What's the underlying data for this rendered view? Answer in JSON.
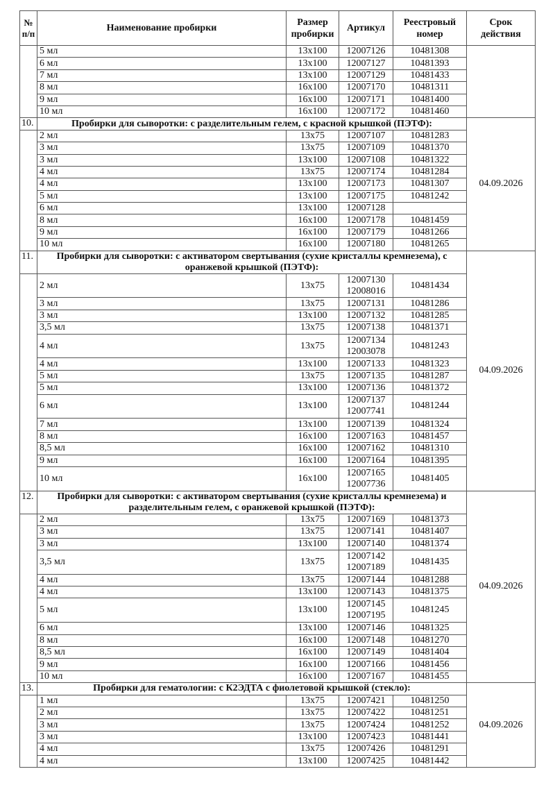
{
  "header": {
    "num": "№ п/п",
    "name": "Наименование пробирки",
    "size": "Размер пробирки",
    "article": "Артикул",
    "registry": "Реестровый номер",
    "expiry": "Срок действия"
  },
  "sections": [
    {
      "num": "",
      "title": "",
      "expiry": "",
      "rows": [
        {
          "name": "5 мл",
          "size": "13х100",
          "article": [
            "12007126"
          ],
          "registry": "10481308"
        },
        {
          "name": "6 мл",
          "size": "13х100",
          "article": [
            "12007127"
          ],
          "registry": "10481393"
        },
        {
          "name": "7 мл",
          "size": "13х100",
          "article": [
            "12007129"
          ],
          "registry": "10481433"
        },
        {
          "name": "8 мл",
          "size": "16х100",
          "article": [
            "12007170"
          ],
          "registry": "10481311"
        },
        {
          "name": "9 мл",
          "size": "16х100",
          "article": [
            "12007171"
          ],
          "registry": "10481400"
        },
        {
          "name": "10 мл",
          "size": "16х100",
          "article": [
            "12007172"
          ],
          "registry": "10481460"
        }
      ]
    },
    {
      "num": "10.",
      "title": "Пробирки для сыворотки: с разделительным гелем, с красной крышкой (ПЭТФ):",
      "expiry": "04.09.2026",
      "rows": [
        {
          "name": "2 мл",
          "size": "13х75",
          "article": [
            "12007107"
          ],
          "registry": "10481283"
        },
        {
          "name": "3 мл",
          "size": "13х75",
          "article": [
            "12007109"
          ],
          "registry": "10481370"
        },
        {
          "name": "3 мл",
          "size": "13х100",
          "article": [
            "12007108"
          ],
          "registry": "10481322"
        },
        {
          "name": "4 мл",
          "size": "13х75",
          "article": [
            "12007174"
          ],
          "registry": "10481284"
        },
        {
          "name": "4 мл",
          "size": "13х100",
          "article": [
            "12007173"
          ],
          "registry": "10481307"
        },
        {
          "name": "5 мл",
          "size": "13х100",
          "article": [
            "12007175"
          ],
          "registry": "10481242"
        },
        {
          "name": "6 мл",
          "size": "13х100",
          "article": [
            "12007128"
          ],
          "registry": ""
        },
        {
          "name": "8 мл",
          "size": "16х100",
          "article": [
            "12007178"
          ],
          "registry": "10481459"
        },
        {
          "name": "9 мл",
          "size": "16х100",
          "article": [
            "12007179"
          ],
          "registry": "10481266"
        },
        {
          "name": "10 мл",
          "size": "16х100",
          "article": [
            "12007180"
          ],
          "registry": "10481265"
        }
      ]
    },
    {
      "num": "11.",
      "title": "Пробирки для сыворотки: с активатором свертывания (сухие кристаллы кремнезема), с оранжевой крышкой (ПЭТФ):",
      "expiry": "04.09.2026",
      "rows": [
        {
          "name": "2 мл",
          "size": "13х75",
          "article": [
            "12007130",
            "12008016"
          ],
          "registry": "10481434"
        },
        {
          "name": "3 мл",
          "size": "13х75",
          "article": [
            "12007131"
          ],
          "registry": "10481286"
        },
        {
          "name": "3 мл",
          "size": "13х100",
          "article": [
            "12007132"
          ],
          "registry": "10481285"
        },
        {
          "name": "3,5 мл",
          "size": "13х75",
          "article": [
            "12007138"
          ],
          "registry": "10481371"
        },
        {
          "name": "4 мл",
          "size": "13х75",
          "article": [
            "12007134",
            "12003078"
          ],
          "registry": "10481243"
        },
        {
          "name": "4 мл",
          "size": "13х100",
          "article": [
            "12007133"
          ],
          "registry": "10481323"
        },
        {
          "name": "5 мл",
          "size": "13х75",
          "article": [
            "12007135"
          ],
          "registry": "10481287"
        },
        {
          "name": "5 мл",
          "size": "13х100",
          "article": [
            "12007136"
          ],
          "registry": "10481372"
        },
        {
          "name": "6 мл",
          "size": "13х100",
          "article": [
            "12007137",
            "12007741"
          ],
          "registry": "10481244"
        },
        {
          "name": "7 мл",
          "size": "13х100",
          "article": [
            "12007139"
          ],
          "registry": "10481324"
        },
        {
          "name": "8 мл",
          "size": "16х100",
          "article": [
            "12007163"
          ],
          "registry": "10481457"
        },
        {
          "name": "8,5 мл",
          "size": "16х100",
          "article": [
            "12007162"
          ],
          "registry": "10481310"
        },
        {
          "name": "9 мл",
          "size": "16х100",
          "article": [
            "12007164"
          ],
          "registry": "10481395"
        },
        {
          "name": "10 мл",
          "size": "16х100",
          "article": [
            "12007165",
            "12007736"
          ],
          "registry": "10481405"
        }
      ]
    },
    {
      "num": "12.",
      "title": "Пробирки для сыворотки: с активатором свертывания (сухие кристаллы кремнезема) и разделительным гелем, с оранжевой крышкой (ПЭТФ):",
      "expiry": "04.09.2026",
      "rows": [
        {
          "name": "2 мл",
          "size": "13х75",
          "article": [
            "12007169"
          ],
          "registry": "10481373"
        },
        {
          "name": "3 мл",
          "size": "13х75",
          "article": [
            "12007141"
          ],
          "registry": "10481407"
        },
        {
          "name": "3 мл",
          "size": "13х100",
          "article": [
            "12007140"
          ],
          "registry": "10481374"
        },
        {
          "name": "3,5 мл",
          "size": "13х75",
          "article": [
            "12007142",
            "12007189"
          ],
          "registry": "10481435"
        },
        {
          "name": "4 мл",
          "size": "13х75",
          "article": [
            "12007144"
          ],
          "registry": "10481288"
        },
        {
          "name": "4 мл",
          "size": "13х100",
          "article": [
            "12007143"
          ],
          "registry": "10481375"
        },
        {
          "name": "5 мл",
          "size": "13х100",
          "article": [
            "12007145",
            "12007195"
          ],
          "registry": "10481245"
        },
        {
          "name": "6 мл",
          "size": "13х100",
          "article": [
            "12007146"
          ],
          "registry": "10481325"
        },
        {
          "name": "8 мл",
          "size": "16х100",
          "article": [
            "12007148"
          ],
          "registry": "10481270"
        },
        {
          "name": "8,5 мл",
          "size": "16х100",
          "article": [
            "12007149"
          ],
          "registry": "10481404"
        },
        {
          "name": "9 мл",
          "size": "16х100",
          "article": [
            "12007166"
          ],
          "registry": "10481456"
        },
        {
          "name": "10 мл",
          "size": "16х100",
          "article": [
            "12007167"
          ],
          "registry": "10481455"
        }
      ]
    },
    {
      "num": "13.",
      "title": "Пробирки для гематологии: с К2ЭДТА с фиолетовой крышкой (стекло):",
      "expiry": "04.09.2026",
      "rows": [
        {
          "name": "1 мл",
          "size": "13х75",
          "article": [
            "12007421"
          ],
          "registry": "10481250"
        },
        {
          "name": "2 мл",
          "size": "13х75",
          "article": [
            "12007422"
          ],
          "registry": "10481251"
        },
        {
          "name": "3 мл",
          "size": "13х75",
          "article": [
            "12007424"
          ],
          "registry": "10481252"
        },
        {
          "name": "3 мл",
          "size": "13х100",
          "article": [
            "12007423"
          ],
          "registry": "10481441"
        },
        {
          "name": "4 мл",
          "size": "13х75",
          "article": [
            "12007426"
          ],
          "registry": "10481291"
        },
        {
          "name": "4 мл",
          "size": "13х100",
          "article": [
            "12007425"
          ],
          "registry": "10481442"
        }
      ]
    }
  ]
}
